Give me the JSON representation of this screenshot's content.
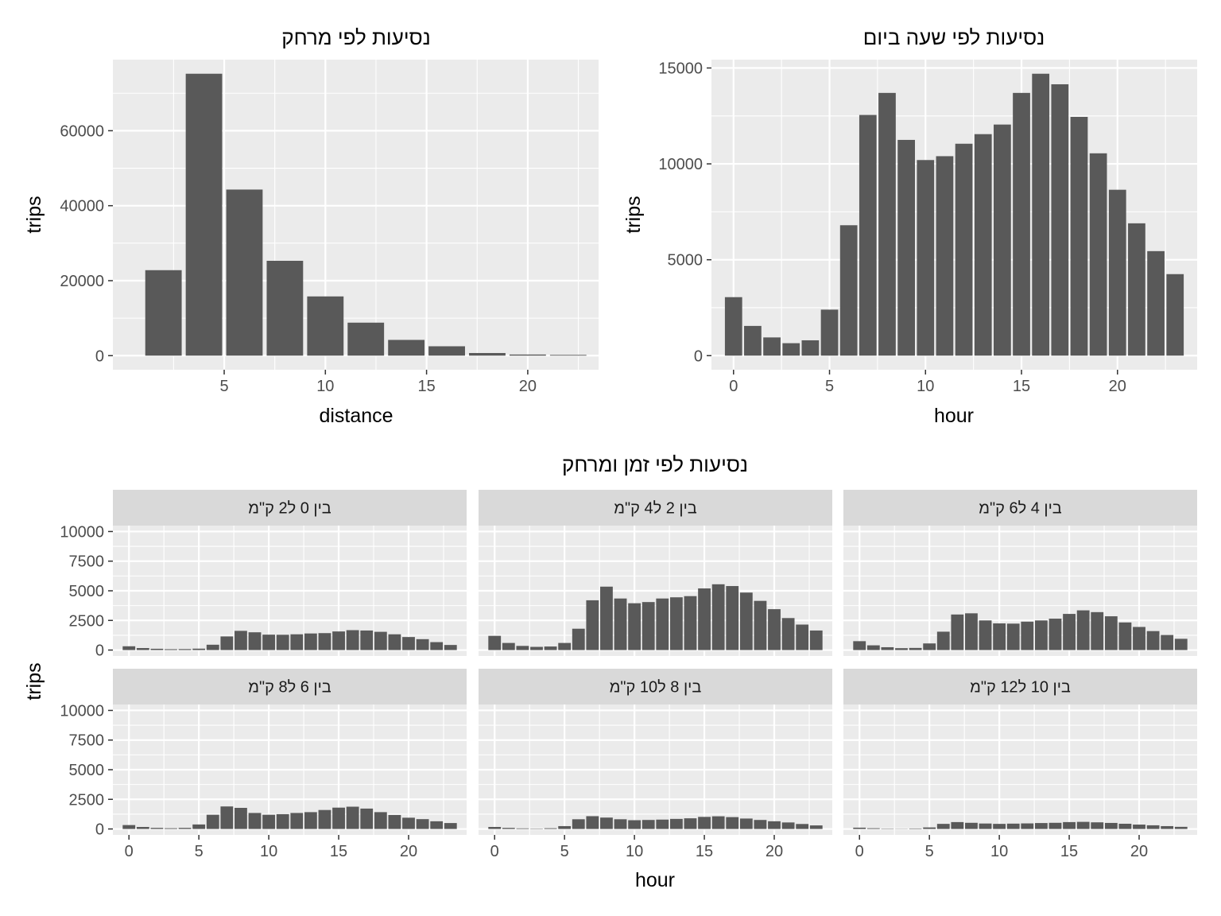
{
  "chart_data": [
    {
      "type": "bar",
      "title": "נסיעות לפי מרחק",
      "xlabel": "distance",
      "ylabel": "trips",
      "x": [
        2,
        4,
        6,
        8,
        10,
        12,
        14,
        16,
        18,
        20,
        22
      ],
      "values": [
        22800,
        75200,
        44300,
        25300,
        15800,
        8800,
        4200,
        2500,
        700,
        300,
        200
      ],
      "xlim": [
        -0.5,
        23.5
      ],
      "ylim": [
        -3760,
        78960
      ],
      "xticks": [
        5,
        10,
        15,
        20
      ],
      "yticks": [
        0,
        20000,
        40000,
        60000
      ],
      "grid": true
    },
    {
      "type": "bar",
      "title": "נסיעות לפי שעה ביום",
      "xlabel": "hour",
      "ylabel": "trips",
      "x": [
        0,
        1,
        2,
        3,
        4,
        5,
        6,
        7,
        8,
        9,
        10,
        11,
        12,
        13,
        14,
        15,
        16,
        17,
        18,
        19,
        20,
        21,
        22,
        23
      ],
      "values": [
        3050,
        1550,
        950,
        650,
        800,
        2400,
        6800,
        12550,
        13700,
        11250,
        10200,
        10400,
        11050,
        11550,
        12050,
        13700,
        14700,
        14150,
        12450,
        10550,
        8650,
        6900,
        5450,
        4250
      ],
      "xlim": [
        -1.15,
        24.15
      ],
      "ylim": [
        -735,
        15435
      ],
      "xticks": [
        0,
        5,
        10,
        15,
        20
      ],
      "yticks": [
        0,
        5000,
        10000,
        15000
      ],
      "grid": true
    },
    {
      "type": "bar",
      "title": "נסיעות לפי זמן ומרחק",
      "xlabel": "hour",
      "ylabel": "trips",
      "x": [
        0,
        1,
        2,
        3,
        4,
        5,
        6,
        7,
        8,
        9,
        10,
        11,
        12,
        13,
        14,
        15,
        16,
        17,
        18,
        19,
        20,
        21,
        22,
        23
      ],
      "xlim": [
        -1.15,
        24.15
      ],
      "ylim": [
        -500,
        10500
      ],
      "xticks": [
        0,
        5,
        10,
        15,
        20
      ],
      "yticks": [
        0,
        2500,
        5000,
        7500,
        10000
      ],
      "grid": true,
      "facets": [
        {
          "label": "בין 0 ל2 ק\"מ",
          "values": [
            320,
            170,
            110,
            70,
            80,
            120,
            450,
            1150,
            1620,
            1500,
            1300,
            1290,
            1330,
            1400,
            1430,
            1570,
            1680,
            1650,
            1540,
            1330,
            1100,
            920,
            670,
            430
          ]
        },
        {
          "label": "בין 2 ל4 ק\"מ",
          "values": [
            1200,
            600,
            350,
            270,
            300,
            600,
            1800,
            4200,
            5350,
            4350,
            3950,
            4050,
            4350,
            4450,
            4550,
            5200,
            5550,
            5400,
            4850,
            4150,
            3450,
            2700,
            2150,
            1650
          ]
        },
        {
          "label": "בין 4 ל6 ק\"מ",
          "values": [
            750,
            400,
            240,
            160,
            180,
            560,
            1550,
            3000,
            3100,
            2500,
            2250,
            2230,
            2400,
            2500,
            2650,
            3050,
            3350,
            3200,
            2850,
            2330,
            1950,
            1600,
            1270,
            950
          ]
        },
        {
          "label": "בין 6 ל8 ק\"מ",
          "values": [
            330,
            170,
            90,
            60,
            90,
            380,
            1200,
            1900,
            1780,
            1350,
            1200,
            1250,
            1350,
            1420,
            1600,
            1800,
            1880,
            1720,
            1420,
            1180,
            950,
            830,
            650,
            500
          ]
        },
        {
          "label": "בין 8 ל10 ק\"מ",
          "values": [
            170,
            90,
            50,
            30,
            60,
            240,
            820,
            1080,
            960,
            820,
            740,
            760,
            790,
            850,
            900,
            1020,
            1070,
            1000,
            880,
            760,
            650,
            550,
            420,
            300
          ]
        },
        {
          "label": "בין 10 ל12 ק\"מ",
          "values": [
            110,
            60,
            30,
            20,
            40,
            130,
            430,
            580,
            520,
            460,
            430,
            450,
            470,
            500,
            520,
            580,
            600,
            560,
            510,
            440,
            370,
            310,
            240,
            180
          ]
        }
      ]
    }
  ]
}
